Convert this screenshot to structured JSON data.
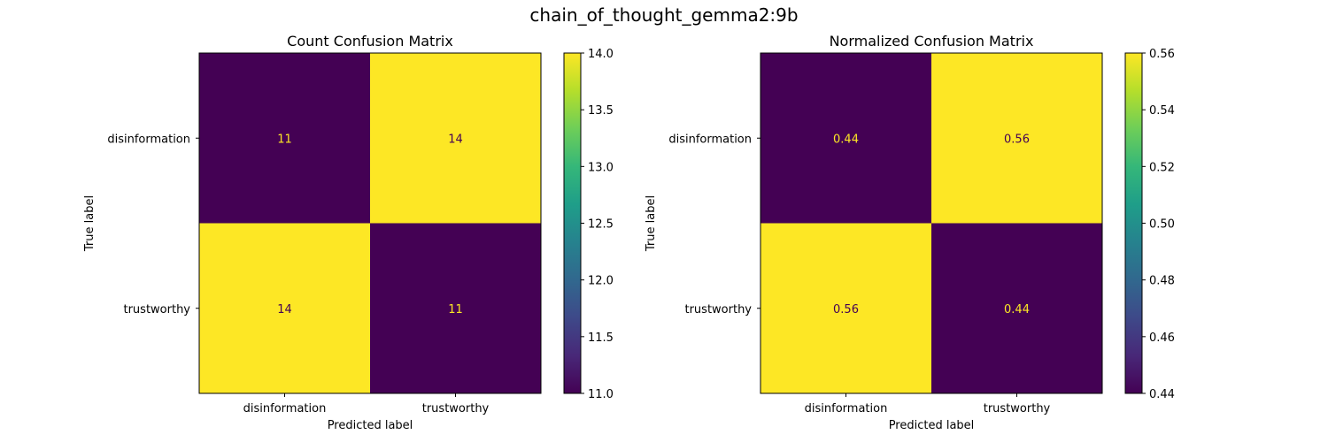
{
  "figure": {
    "suptitle": "chain_of_thought_gemma2:9b"
  },
  "colors": {
    "low": "#440154",
    "high": "#fde725",
    "text_on_low": "#fde725",
    "text_on_high": "#440154",
    "colormap": [
      "#440154",
      "#482878",
      "#3e4989",
      "#31688e",
      "#26828e",
      "#1f9e89",
      "#35b779",
      "#6ece58",
      "#b5de2b",
      "#fde725"
    ]
  },
  "chart_data": [
    {
      "type": "heatmap",
      "title": "Count Confusion Matrix",
      "xlabel": "Predicted label",
      "ylabel": "True label",
      "x_categories": [
        "disinformation",
        "trustworthy"
      ],
      "y_categories": [
        "disinformation",
        "trustworthy"
      ],
      "values": [
        [
          11,
          14
        ],
        [
          14,
          11
        ]
      ],
      "cell_labels": [
        [
          "11",
          "14"
        ],
        [
          "14",
          "11"
        ]
      ],
      "colorbar": {
        "min": 11.0,
        "max": 14.0,
        "ticks": [
          11.0,
          11.5,
          12.0,
          12.5,
          13.0,
          13.5,
          14.0
        ],
        "tick_labels": [
          "11.0",
          "11.5",
          "12.0",
          "12.5",
          "13.0",
          "13.5",
          "14.0"
        ]
      }
    },
    {
      "type": "heatmap",
      "title": "Normalized Confusion Matrix",
      "xlabel": "Predicted label",
      "ylabel": "True label",
      "x_categories": [
        "disinformation",
        "trustworthy"
      ],
      "y_categories": [
        "disinformation",
        "trustworthy"
      ],
      "values": [
        [
          0.44,
          0.56
        ],
        [
          0.56,
          0.44
        ]
      ],
      "cell_labels": [
        [
          "0.44",
          "0.56"
        ],
        [
          "0.56",
          "0.44"
        ]
      ],
      "colorbar": {
        "min": 0.44,
        "max": 0.56,
        "ticks": [
          0.44,
          0.46,
          0.48,
          0.5,
          0.52,
          0.54,
          0.56
        ],
        "tick_labels": [
          "0.44",
          "0.46",
          "0.48",
          "0.50",
          "0.52",
          "0.54",
          "0.56"
        ]
      }
    }
  ]
}
